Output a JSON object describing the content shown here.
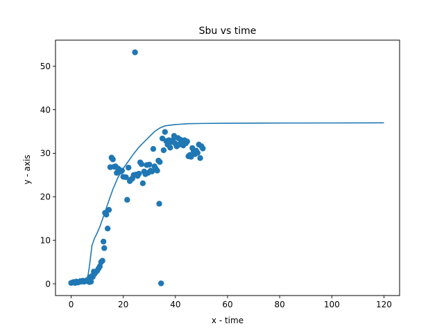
{
  "chart_data": {
    "type": "scatter",
    "title": "Sbu vs time",
    "xlabel": "x - time",
    "ylabel": "y - axis",
    "xlim": [
      -6,
      126
    ],
    "ylim": [
      -2.7,
      56
    ],
    "xticks": [
      0,
      20,
      40,
      60,
      80,
      100,
      120
    ],
    "yticks": [
      0,
      10,
      20,
      30,
      40,
      50
    ],
    "grid": false,
    "colors": {
      "series": "#1f77b4",
      "axes": "#000000",
      "background": "#ffffff"
    },
    "series": [
      {
        "type": "scatter",
        "points": [
          [
            0.0,
            0.2
          ],
          [
            0.5,
            0.3
          ],
          [
            1.0,
            0.4
          ],
          [
            1.5,
            0.2
          ],
          [
            2.0,
            0.5
          ],
          [
            2.5,
            0.3
          ],
          [
            3.0,
            0.4
          ],
          [
            3.5,
            0.6
          ],
          [
            4.0,
            0.5
          ],
          [
            4.5,
            0.7
          ],
          [
            5.0,
            0.5
          ],
          [
            5.5,
            0.6
          ],
          [
            6.0,
            0.8
          ],
          [
            6.5,
            0.6
          ],
          [
            7.0,
            0.4
          ],
          [
            7.3,
            1.5
          ],
          [
            7.6,
            0.5
          ],
          [
            8.0,
            1.8
          ],
          [
            8.3,
            1.6
          ],
          [
            8.7,
            2.8
          ],
          [
            9.0,
            2.3
          ],
          [
            9.5,
            2.7
          ],
          [
            10.0,
            3.0
          ],
          [
            10.5,
            3.5
          ],
          [
            11.0,
            4.0
          ],
          [
            11.5,
            5.0
          ],
          [
            12.0,
            5.3
          ],
          [
            12.4,
            9.7
          ],
          [
            12.7,
            8.2
          ],
          [
            13.0,
            16.3
          ],
          [
            13.5,
            15.9
          ],
          [
            14.0,
            12.7
          ],
          [
            14.5,
            17.0
          ],
          [
            15.0,
            26.8
          ],
          [
            15.5,
            29.0
          ],
          [
            16.0,
            28.6
          ],
          [
            16.5,
            26.9
          ],
          [
            17.0,
            27.0
          ],
          [
            17.5,
            25.5
          ],
          [
            18.0,
            26.5
          ],
          [
            18.5,
            26.2
          ],
          [
            19.0,
            25.8
          ],
          [
            19.5,
            26.0
          ],
          [
            20.0,
            24.6
          ],
          [
            21.0,
            24.5
          ],
          [
            21.5,
            19.3
          ],
          [
            22.0,
            26.7
          ],
          [
            22.5,
            23.6
          ],
          [
            23.0,
            24.0
          ],
          [
            23.5,
            24.2
          ],
          [
            24.0,
            25.0
          ],
          [
            24.5,
            53.2
          ],
          [
            25.0,
            25.1
          ],
          [
            25.5,
            24.8
          ],
          [
            26.0,
            25.3
          ],
          [
            26.5,
            27.9
          ],
          [
            27.0,
            27.5
          ],
          [
            27.5,
            23.1
          ],
          [
            28.0,
            25.8
          ],
          [
            28.5,
            25.2
          ],
          [
            29.0,
            27.3
          ],
          [
            29.5,
            25.5
          ],
          [
            30.0,
            27.4
          ],
          [
            30.5,
            26.0
          ],
          [
            31.0,
            25.8
          ],
          [
            31.5,
            31.0
          ],
          [
            32.0,
            27.0
          ],
          [
            32.5,
            26.4
          ],
          [
            33.0,
            26.0
          ],
          [
            33.5,
            28.3
          ],
          [
            33.8,
            18.4
          ],
          [
            34.0,
            28.0
          ],
          [
            34.5,
            0.1
          ],
          [
            35.0,
            33.4
          ],
          [
            35.5,
            30.7
          ],
          [
            36.0,
            34.9
          ],
          [
            36.5,
            32.8
          ],
          [
            37.0,
            32.0
          ],
          [
            37.5,
            33.0
          ],
          [
            38.0,
            31.3
          ],
          [
            38.5,
            32.6
          ],
          [
            39.0,
            33.0
          ],
          [
            39.5,
            34.0
          ],
          [
            40.0,
            32.2
          ],
          [
            40.5,
            31.6
          ],
          [
            41.0,
            33.5
          ],
          [
            41.5,
            32.0
          ],
          [
            42.0,
            33.1
          ],
          [
            42.5,
            32.4
          ],
          [
            43.0,
            31.8
          ],
          [
            43.5,
            33.0
          ],
          [
            44.0,
            32.3
          ],
          [
            44.5,
            32.7
          ],
          [
            45.0,
            29.3
          ],
          [
            45.5,
            29.6
          ],
          [
            46.0,
            29.2
          ],
          [
            46.5,
            31.2
          ],
          [
            47.0,
            30.4
          ],
          [
            47.5,
            29.8
          ],
          [
            48.0,
            30.6
          ],
          [
            48.5,
            30.1
          ],
          [
            49.0,
            32.0
          ],
          [
            49.5,
            28.9
          ],
          [
            50.0,
            31.6
          ],
          [
            50.5,
            31.1
          ]
        ]
      },
      {
        "type": "line",
        "points": [
          [
            0,
            0.1
          ],
          [
            2,
            0.2
          ],
          [
            4,
            0.4
          ],
          [
            5,
            0.7
          ],
          [
            6,
            1.2
          ],
          [
            6.5,
            2.0
          ],
          [
            7,
            4.0
          ],
          [
            8,
            8.8
          ],
          [
            9,
            10.5
          ],
          [
            10,
            11.7
          ],
          [
            11,
            13.1
          ],
          [
            12,
            14.8
          ],
          [
            14,
            18.3
          ],
          [
            16,
            21.7
          ],
          [
            18,
            24.5
          ],
          [
            20,
            26.5
          ],
          [
            22,
            28.2
          ],
          [
            24,
            29.9
          ],
          [
            26,
            31.4
          ],
          [
            28,
            32.6
          ],
          [
            30,
            33.8
          ],
          [
            32,
            35.0
          ],
          [
            34,
            35.8
          ],
          [
            36,
            36.3
          ],
          [
            40,
            36.6
          ],
          [
            45,
            36.8
          ],
          [
            50,
            36.85
          ],
          [
            60,
            36.9
          ],
          [
            80,
            36.95
          ],
          [
            100,
            36.97
          ],
          [
            120,
            37.0
          ]
        ]
      }
    ]
  }
}
